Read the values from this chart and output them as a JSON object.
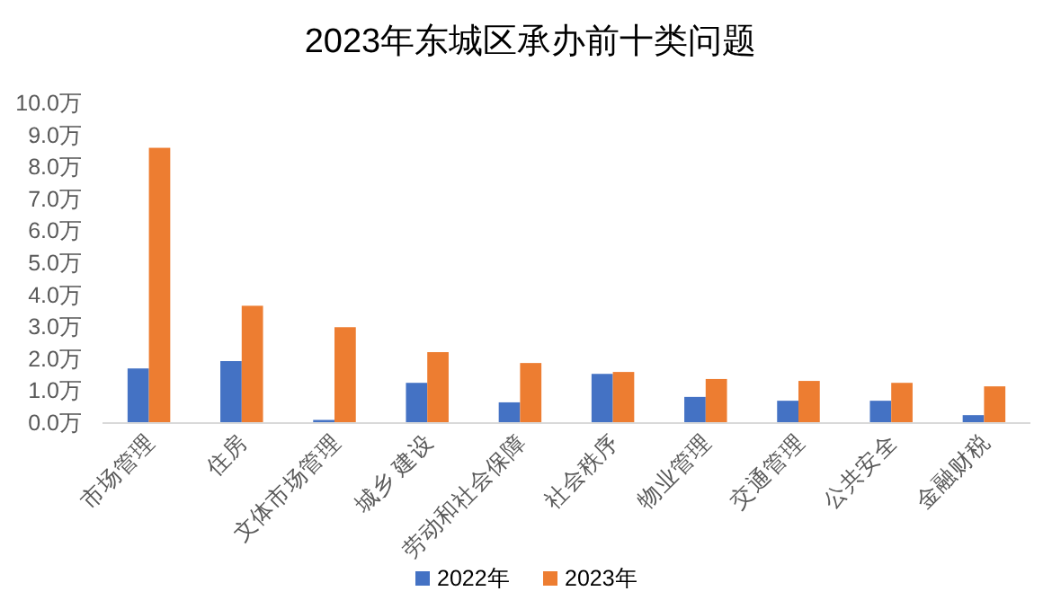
{
  "chart_data": {
    "type": "bar",
    "title": "2023年东城区承办前十类问题",
    "categories": [
      "市场管理",
      "住房",
      "文体市场管理",
      "城乡 建设",
      "劳动和社会保障",
      "社会秩序",
      "物业管理",
      "交通管理",
      "公共安全",
      "金融财税"
    ],
    "series": [
      {
        "name": "2022年",
        "color": "#4472c4",
        "values": [
          1.68,
          1.91,
          0.07,
          1.23,
          0.62,
          1.51,
          0.79,
          0.67,
          0.67,
          0.22
        ]
      },
      {
        "name": "2023年",
        "color": "#ed7d31",
        "values": [
          8.58,
          3.64,
          2.97,
          2.19,
          1.85,
          1.57,
          1.35,
          1.29,
          1.23,
          1.12
        ]
      }
    ],
    "ylim": [
      0,
      10
    ],
    "yticks": [
      {
        "value": 0,
        "label": "0.0万"
      },
      {
        "value": 1,
        "label": "1.0万"
      },
      {
        "value": 2,
        "label": "2.0万"
      },
      {
        "value": 3,
        "label": "3.0万"
      },
      {
        "value": 4,
        "label": "4.0万"
      },
      {
        "value": 5,
        "label": "5.0万"
      },
      {
        "value": 6,
        "label": "6.0万"
      },
      {
        "value": 7,
        "label": "7.0万"
      },
      {
        "value": 8,
        "label": "8.0万"
      },
      {
        "value": 9,
        "label": "9.0万"
      },
      {
        "value": 10,
        "label": "10.0万"
      }
    ],
    "grid": false,
    "legend": "bottom"
  }
}
